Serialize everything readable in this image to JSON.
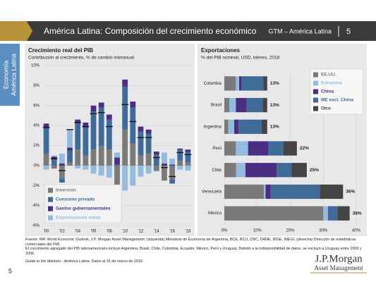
{
  "header": {
    "title": "América Latina: Composición del crecimiento económico",
    "section": "GTM – América Latina",
    "page": "5"
  },
  "sidebar": {
    "line1": "Economía",
    "line2": "América Latina"
  },
  "chart_data": [
    {
      "type": "bar",
      "stacked": true,
      "title": "Crecimiento real del PIB",
      "subtitle": "Contribución al crecimiento, % de cambio interanual",
      "categories": [
        "'00",
        null,
        "'02",
        null,
        "'04",
        null,
        "'06",
        null,
        "'08",
        null,
        "'10",
        null,
        "'12",
        null,
        "'14",
        null,
        "'16",
        null,
        "'18"
      ],
      "series": [
        {
          "name": "Inversión",
          "color": "#7a7a7a",
          "values": [
            1.2,
            -0.3,
            -1.3,
            0.3,
            1.6,
            1.0,
            1.6,
            2.0,
            1.6,
            -3.5,
            3.6,
            2.2,
            1.0,
            1.2,
            -0.5,
            -1.5,
            -1.4,
            0.5,
            0.3
          ]
        },
        {
          "name": "Consumo privado",
          "color": "#3e6b98",
          "values": [
            2.6,
            0.6,
            -0.4,
            1.2,
            2.6,
            2.8,
            3.8,
            3.8,
            3.0,
            0.1,
            4.3,
            3.6,
            2.4,
            2.0,
            1.1,
            0.0,
            -0.4,
            1.1,
            1.1
          ]
        },
        {
          "name": "Gastos gubernamentales",
          "color": "#4b2e83",
          "values": [
            0.4,
            0.3,
            0.2,
            0.3,
            0.4,
            0.5,
            0.6,
            0.5,
            0.5,
            0.7,
            0.7,
            0.6,
            0.5,
            0.4,
            0.3,
            0.2,
            0.1,
            0.1,
            0.2
          ]
        },
        {
          "name": "Exportaciones netas",
          "color": "#93bbdf",
          "values": [
            -0.4,
            0.1,
            1.0,
            1.8,
            -0.3,
            -0.4,
            -0.8,
            -1.0,
            -1.2,
            0.5,
            -2.5,
            -2.0,
            -1.1,
            -0.8,
            -0.1,
            1.1,
            0.6,
            -0.4,
            -0.5
          ]
        }
      ],
      "totals": [
        3.8,
        0.7,
        -0.5,
        3.6,
        4.3,
        3.9,
        5.2,
        5.3,
        3.9,
        -2.2,
        6.1,
        4.4,
        2.8,
        2.8,
        0.8,
        -0.2,
        -1.1,
        1.3,
        1.1
      ],
      "ylim": [
        -6,
        10
      ],
      "yticks": [
        {
          "value": -6,
          "label": "-6%"
        },
        {
          "value": -4,
          "label": "-4%"
        },
        {
          "value": -2,
          "label": "-2%"
        },
        {
          "value": 0,
          "label": "0%"
        },
        {
          "value": 2,
          "label": "2%"
        },
        {
          "value": 4,
          "label": "4%"
        },
        {
          "value": 6,
          "label": "6%"
        },
        {
          "value": 8,
          "label": "8%"
        },
        {
          "value": 10,
          "label": "10%"
        }
      ],
      "grid": true,
      "legend": "lower left"
    },
    {
      "type": "barh",
      "stacked": true,
      "title": "Exportaciones",
      "subtitle": "% del PIB nominal, USD, bienes, 2018",
      "categories": [
        "Colombia",
        "Brasil",
        "Argentina",
        "Perú",
        "Chile",
        "Venezuela",
        "México"
      ],
      "series": [
        {
          "name": "EE.UU.",
          "color": "#7a7a7a",
          "values": [
            3.5,
            1.5,
            1.2,
            3.5,
            3.6,
            12.0,
            30.0
          ]
        },
        {
          "name": "Eurozona",
          "color": "#93bbdf",
          "values": [
            1.0,
            2.0,
            1.8,
            3.7,
            2.8,
            0.5,
            1.5
          ]
        },
        {
          "name": "China",
          "color": "#4b2e83",
          "values": [
            0.8,
            3.3,
            1.3,
            6.2,
            9.5,
            1.5,
            0.3
          ]
        },
        {
          "name": "ME excl. China",
          "color": "#3e6b98",
          "values": [
            6.5,
            4.8,
            7.0,
            4.5,
            4.5,
            15.0,
            2.5
          ]
        },
        {
          "name": "Otro",
          "color": "#444444",
          "values": [
            1.2,
            1.4,
            1.7,
            4.1,
            4.6,
            7.0,
            3.7
          ]
        }
      ],
      "totals": [
        13,
        13,
        13,
        22,
        25,
        36,
        38
      ],
      "value_labels": [
        "13%",
        "13%",
        "13%",
        "22%",
        "25%",
        "36%",
        "38%"
      ],
      "xlim": [
        0,
        40
      ],
      "xticks": [
        {
          "value": 0,
          "label": "0%"
        },
        {
          "value": 10,
          "label": "10%"
        },
        {
          "value": 20,
          "label": "20%"
        },
        {
          "value": 30,
          "label": "30%"
        },
        {
          "value": 40,
          "label": "40%"
        }
      ],
      "grid": true,
      "legend": "upper right"
    }
  ],
  "footer": {
    "source": "Fuente: IMF World Economic Outlook, J.P. Morgan Asset Management; (izquierda) Ministerio de Economía de Argentina, BCE, BCU, CBC, DANE, IBGE, INEGI; (derecha) Dirección de estadísticas comerciales del FMI.",
    "note": "El crecimiento agregado del PIB latinoamericano incluye Argentina, Brasil, Chile, Colombia, Ecuador, México, Perú y Uruguay. Debido a la indisponibilidad de datos, se excluyó a Uruguay entre 2000 y 2006.",
    "guide": "Guide to the Markets - América Latina.",
    "date": "Datos al 31 de marzo de 2019.",
    "page": "5"
  },
  "logo": {
    "name": "J.P.Morgan",
    "sub": "Asset Management"
  }
}
